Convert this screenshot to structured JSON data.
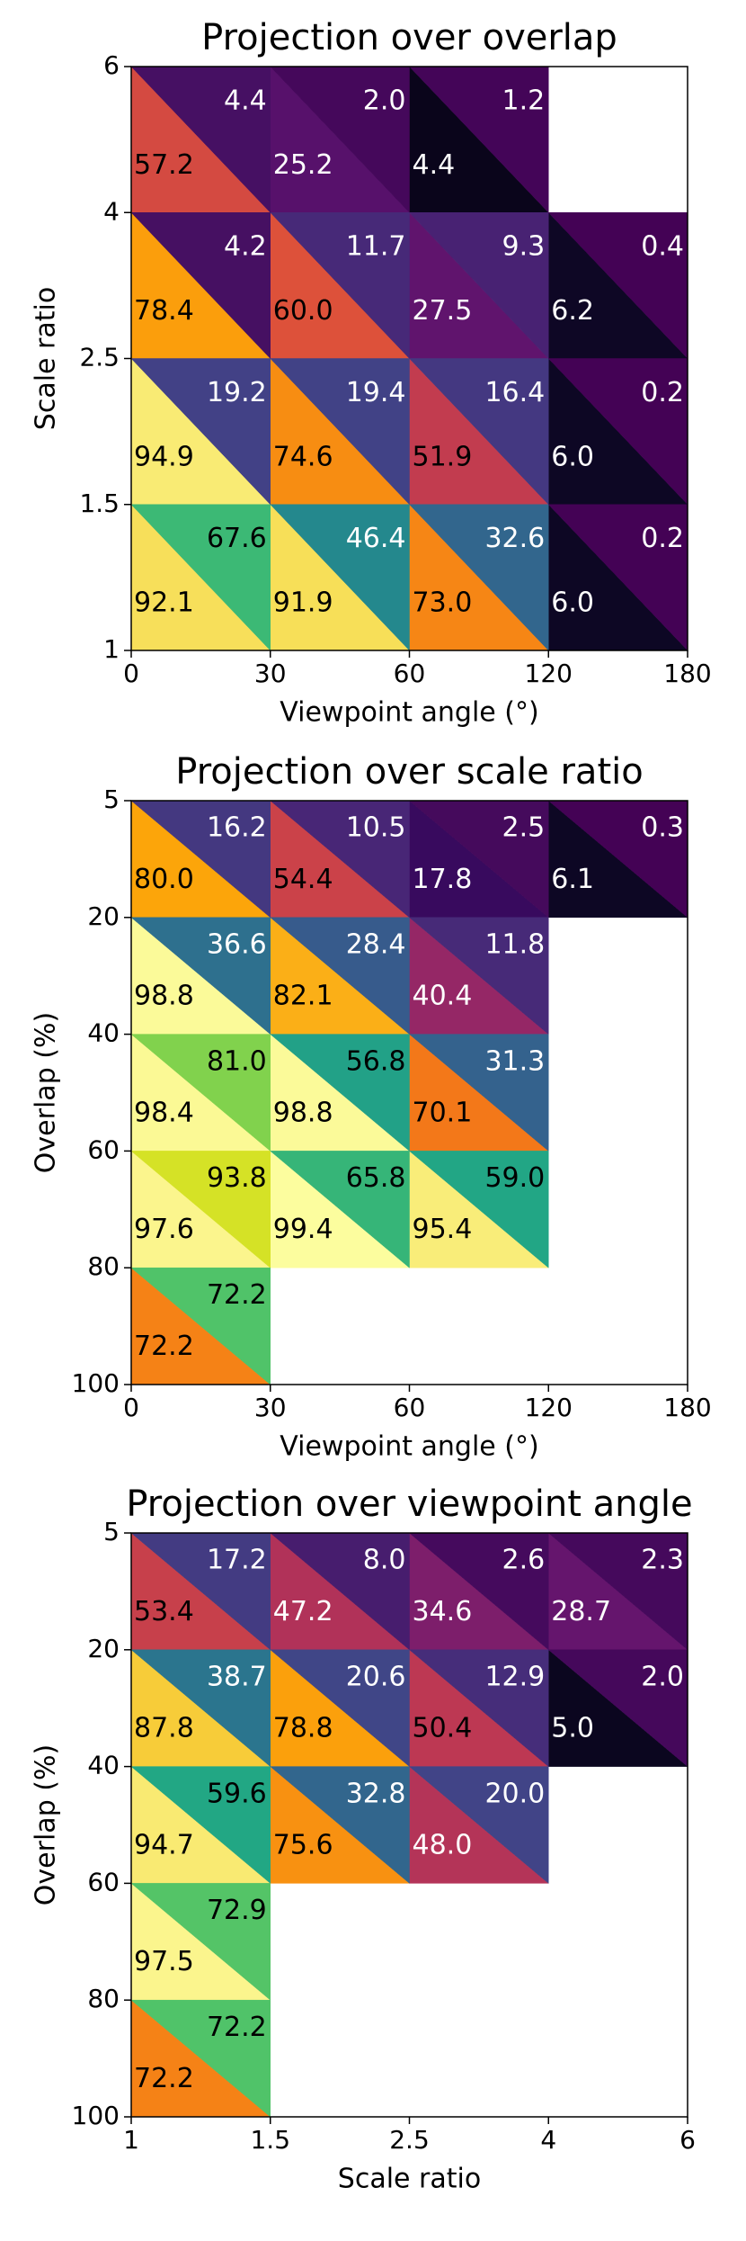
{
  "chart_data": [
    {
      "type": "triangle-heatmap",
      "title": "Projection over overlap",
      "xlabel": "Viewpoint angle (°)",
      "ylabel": "Scale ratio",
      "xticks": [
        0,
        30,
        60,
        120,
        180
      ],
      "yticks": [
        6,
        4,
        2.5,
        1.5,
        1
      ],
      "lower_colormap": "inferno",
      "upper_colormap": "viridis",
      "clim": [
        0,
        100
      ],
      "lower": [
        [
          57.2,
          25.2,
          4.4,
          null
        ],
        [
          78.4,
          60.0,
          27.5,
          6.2
        ],
        [
          94.9,
          74.6,
          51.9,
          6.0
        ],
        [
          92.1,
          91.9,
          73.0,
          6.0
        ]
      ],
      "lower_labels": [
        [
          "57.2",
          "25.2",
          "4.4",
          null
        ],
        [
          "78.4",
          "60.0",
          "27.5",
          "6.2"
        ],
        [
          "94.9",
          "74.6",
          "51.9",
          "6.0"
        ],
        [
          "92.1",
          "91.9",
          "73.0",
          "6.0"
        ]
      ],
      "upper": [
        [
          4.4,
          2.0,
          1.2,
          null
        ],
        [
          4.2,
          11.7,
          9.3,
          0.4
        ],
        [
          19.2,
          19.4,
          16.4,
          0.2
        ],
        [
          67.6,
          46.4,
          32.6,
          0.2
        ]
      ],
      "upper_labels": [
        [
          "4.4",
          "2.0",
          "1.2",
          null
        ],
        [
          "4.2",
          "11.7",
          "9.3",
          "0.4"
        ],
        [
          "19.2",
          "19.4",
          "16.4",
          "0.2"
        ],
        [
          "67.6",
          "46.4",
          "32.6",
          "0.2"
        ]
      ]
    },
    {
      "type": "triangle-heatmap",
      "title": "Projection over scale ratio",
      "xlabel": "Viewpoint angle (°)",
      "ylabel": "Overlap (%)",
      "xticks": [
        0,
        30,
        60,
        120,
        180
      ],
      "yticks": [
        5,
        20,
        40,
        60,
        80,
        100
      ],
      "lower_colormap": "inferno",
      "upper_colormap": "viridis",
      "clim": [
        0,
        100
      ],
      "lower": [
        [
          80.0,
          54.4,
          17.8,
          6.1
        ],
        [
          98.8,
          82.1,
          40.4,
          null
        ],
        [
          98.4,
          98.8,
          70.1,
          null
        ],
        [
          97.6,
          99.4,
          95.4,
          null
        ],
        [
          72.2,
          null,
          null,
          null
        ]
      ],
      "lower_labels": [
        [
          "80.0",
          "54.4",
          "17.8",
          "6.1"
        ],
        [
          "98.8",
          "82.1",
          "40.4",
          null
        ],
        [
          "98.4",
          "98.8",
          "70.1",
          null
        ],
        [
          "97.6",
          "99.4",
          "95.4",
          null
        ],
        [
          "72.2",
          null,
          null,
          null
        ]
      ],
      "upper": [
        [
          16.2,
          10.5,
          2.5,
          0.3
        ],
        [
          36.6,
          28.4,
          11.8,
          null
        ],
        [
          81.0,
          56.8,
          31.3,
          null
        ],
        [
          93.8,
          65.8,
          59.0,
          null
        ],
        [
          72.2,
          null,
          null,
          null
        ]
      ],
      "upper_labels": [
        [
          "16.2",
          "10.5",
          "2.5",
          "0.3"
        ],
        [
          "36.6",
          "28.4",
          "11.8",
          null
        ],
        [
          "81.0",
          "56.8",
          "31.3",
          null
        ],
        [
          "93.8",
          "65.8",
          "59.0",
          null
        ],
        [
          "72.2",
          null,
          null,
          null
        ]
      ]
    },
    {
      "type": "triangle-heatmap",
      "title": "Projection over viewpoint angle",
      "xlabel": "Scale ratio",
      "ylabel": "Overlap (%)",
      "xticks": [
        1,
        1.5,
        2.5,
        4,
        6
      ],
      "yticks": [
        5,
        20,
        40,
        60,
        80,
        100
      ],
      "lower_colormap": "inferno",
      "upper_colormap": "viridis",
      "clim": [
        0,
        100
      ],
      "lower": [
        [
          53.4,
          47.2,
          34.6,
          28.7
        ],
        [
          87.8,
          78.8,
          50.4,
          5.0
        ],
        [
          94.7,
          75.6,
          48.0,
          null
        ],
        [
          97.5,
          null,
          null,
          null
        ],
        [
          72.2,
          null,
          null,
          null
        ]
      ],
      "lower_labels": [
        [
          "53.4",
          "47.2",
          "34.6",
          "28.7"
        ],
        [
          "87.8",
          "78.8",
          "50.4",
          "5.0"
        ],
        [
          "94.7",
          "75.6",
          "48.0",
          null
        ],
        [
          "97.5",
          null,
          null,
          null
        ],
        [
          "72.2",
          null,
          null,
          null
        ]
      ],
      "upper": [
        [
          17.2,
          8.0,
          2.6,
          2.3
        ],
        [
          38.7,
          20.6,
          12.9,
          2.0
        ],
        [
          59.6,
          32.8,
          20.0,
          null
        ],
        [
          72.9,
          null,
          null,
          null
        ],
        [
          72.2,
          null,
          null,
          null
        ]
      ],
      "upper_labels": [
        [
          "17.2",
          "8.0",
          "2.6",
          "2.3"
        ],
        [
          "38.7",
          "20.6",
          "12.9",
          "2.0"
        ],
        [
          "59.6",
          "32.8",
          "20.0",
          null
        ],
        [
          "72.9",
          null,
          null,
          null
        ],
        [
          "72.2",
          null,
          null,
          null
        ]
      ]
    }
  ]
}
